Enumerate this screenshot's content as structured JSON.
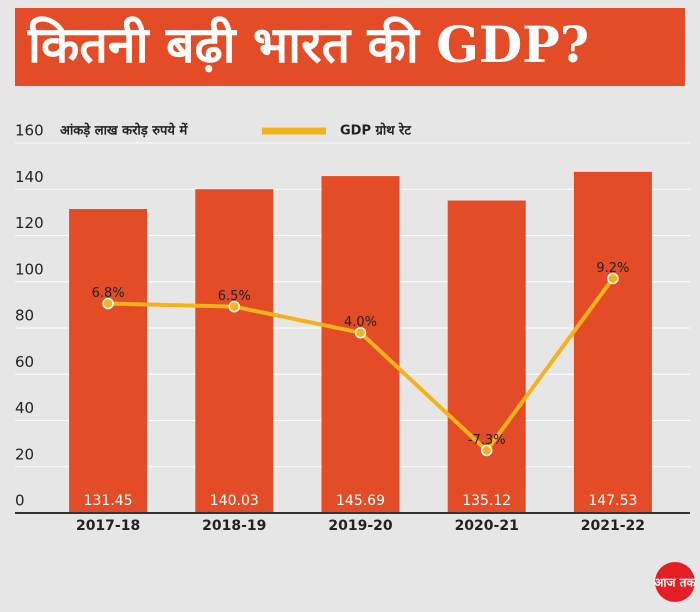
{
  "chart_data": {
    "type": "bar",
    "title": "कितनी बढ़ी भारत की GDP?",
    "unit_note": "आंकड़े लाख करोड़ रुपये में",
    "categories": [
      "2017-18",
      "2018-19",
      "2019-20",
      "2020-21",
      "2021-22"
    ],
    "values": [
      131.45,
      140.03,
      145.69,
      135.12,
      147.53
    ],
    "color": "#e34c26",
    "ylim": [
      0,
      160
    ],
    "yticks": [
      0,
      20,
      40,
      60,
      80,
      100,
      120,
      140,
      160
    ],
    "grid": true,
    "y2lim": [
      -13.3,
      22.2
    ],
    "series": [
      {
        "name": "GDP ग्रोथ रेट",
        "color": "#f5b21b",
        "axis": "y2",
        "values": [
          6.8,
          6.5,
          4.0,
          -7.3,
          9.2
        ],
        "value_labels": [
          "6.8%",
          "6.5%",
          "4.0%",
          "-7.3%",
          "9.2%"
        ]
      }
    ],
    "legend": "top"
  },
  "logo": "आज तक"
}
